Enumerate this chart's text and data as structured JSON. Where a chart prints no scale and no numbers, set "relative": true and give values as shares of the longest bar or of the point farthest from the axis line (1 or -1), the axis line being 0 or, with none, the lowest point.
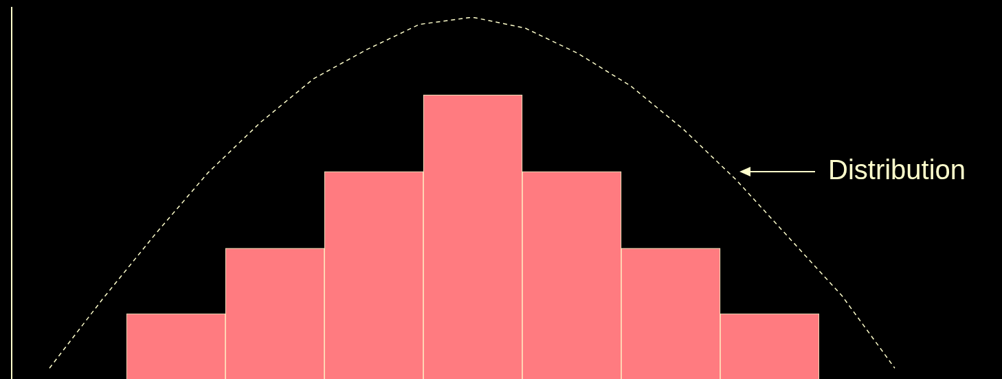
{
  "chart_data": [
    {
      "type": "bar",
      "relative": true,
      "categories": [
        null,
        null,
        null,
        null,
        null,
        null,
        null
      ],
      "series": [
        {
          "color": "#ff7b80",
          "values": [
            0.23,
            0.46,
            0.73,
            1,
            0.73,
            0.46,
            0.23
          ]
        }
      ],
      "legend": false
    },
    {
      "type": "line",
      "relative": true,
      "categories": [
        null,
        null,
        null,
        null,
        null,
        null,
        null,
        null,
        null,
        null,
        null,
        null,
        null,
        null,
        null,
        null,
        null
      ],
      "series": [
        {
          "color": "#ffffcc",
          "values": [
            0.03,
            0.22,
            0.4,
            0.57,
            0.71,
            0.83,
            0.91,
            0.98,
            1,
            0.97,
            0.9,
            0.81,
            0.69,
            0.55,
            0.39,
            0.23,
            0.03
          ]
        }
      ],
      "line_style": "dashed",
      "marker": "none",
      "annotations": [
        "Distribution"
      ],
      "legend": false
    }
  ]
}
